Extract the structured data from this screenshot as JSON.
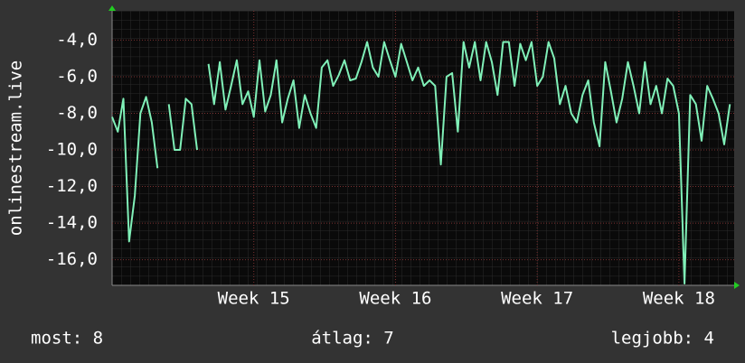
{
  "chart_data": {
    "type": "line",
    "y_label": "onlinestream.live",
    "x": [
      14.0,
      14.04,
      14.08,
      14.12,
      14.16,
      14.2,
      14.24,
      14.28,
      14.32,
      14.36,
      14.4,
      14.44,
      14.48,
      14.52,
      14.56,
      14.6,
      14.64,
      14.68,
      14.72,
      14.76,
      14.8,
      14.84,
      14.88,
      14.92,
      14.96,
      15.0,
      15.04,
      15.08,
      15.12,
      15.16,
      15.2,
      15.24,
      15.28,
      15.32,
      15.36,
      15.4,
      15.44,
      15.48,
      15.52,
      15.56,
      15.6,
      15.64,
      15.68,
      15.72,
      15.76,
      15.8,
      15.84,
      15.88,
      15.92,
      15.96,
      16.0,
      16.04,
      16.08,
      16.12,
      16.16,
      16.2,
      16.24,
      16.28,
      16.32,
      16.36,
      16.4,
      16.44,
      16.48,
      16.52,
      16.56,
      16.6,
      16.64,
      16.68,
      16.72,
      16.76,
      16.8,
      16.84,
      16.88,
      16.92,
      16.96,
      17.0,
      17.04,
      17.08,
      17.12,
      17.16,
      17.2,
      17.24,
      17.28,
      17.32,
      17.36,
      17.4,
      17.44,
      17.48,
      17.52,
      17.56,
      17.6,
      17.64,
      17.68,
      17.72,
      17.76,
      17.8,
      17.84,
      17.88,
      17.92,
      17.96,
      18.0,
      18.04,
      18.08,
      18.12,
      18.16,
      18.2,
      18.24,
      18.28,
      18.32,
      18.36
    ],
    "series": [
      {
        "name": "onlinestream.live",
        "color": "#80f0b8",
        "values": [
          -8.2,
          -9,
          -7.2,
          -15,
          -12.5,
          -8,
          -7.1,
          -8.5,
          -11,
          null,
          -7.5,
          -10,
          -10,
          -7.2,
          -7.5,
          -10,
          null,
          -5.3,
          -7.5,
          -5.2,
          -7.8,
          -6.5,
          -5.1,
          -7.5,
          -6.8,
          -8.2,
          -5.1,
          -7.9,
          -7,
          -5.1,
          -8.5,
          -7.2,
          -6.2,
          -8.8,
          -7,
          -8,
          -8.8,
          -5.5,
          -5.1,
          -6.5,
          -5.9,
          -5.1,
          -6.2,
          -6.1,
          -5.2,
          -4.1,
          -5.5,
          -6,
          -4.1,
          -5.1,
          -6,
          -4.2,
          -5.2,
          -6.2,
          -5.5,
          -6.5,
          -6.2,
          -6.5,
          -10.8,
          -6,
          -5.8,
          -9,
          -4.1,
          -5.5,
          -4.1,
          -6.2,
          -4.1,
          -5.2,
          -7,
          -4.1,
          -4.1,
          -6.5,
          -4.2,
          -5.1,
          -4.1,
          -6.5,
          -6,
          -4.1,
          -5,
          -7.5,
          -6.5,
          -8,
          -8.5,
          -7,
          -6.2,
          -8.5,
          -9.8,
          -5.2,
          -6.8,
          -8.5,
          -7.2,
          -5.2,
          -6.5,
          -8,
          -5.2,
          -7.5,
          -6.5,
          -8,
          -6.1,
          -6.5,
          -8,
          -17.3,
          -7,
          -7.5,
          -9.5,
          -6.5,
          -7.2,
          -8,
          -9.7,
          -7.5
        ]
      }
    ],
    "xlim": [
      14.0,
      18.39
    ],
    "xticks": [
      {
        "value": 15,
        "label": "Week 15"
      },
      {
        "value": 16,
        "label": "Week 16"
      },
      {
        "value": 17,
        "label": "Week 17"
      },
      {
        "value": 18,
        "label": "Week 18"
      }
    ],
    "ylim": [
      -17.4,
      -2.4
    ],
    "yticks": [
      {
        "value": -4,
        "label": "-4,0"
      },
      {
        "value": -6,
        "label": "-6,0"
      },
      {
        "value": -8,
        "label": "-8,0"
      },
      {
        "value": -10,
        "label": "-10,0"
      },
      {
        "value": -12,
        "label": "-12,0"
      },
      {
        "value": -14,
        "label": "-14,0"
      },
      {
        "value": -16,
        "label": "-16,0"
      }
    ],
    "grid": true,
    "stats": [
      "most: 8",
      "átlag: 7",
      "legjobb: 4"
    ]
  }
}
